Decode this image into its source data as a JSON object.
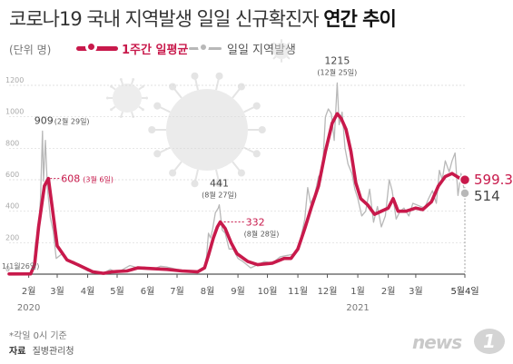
{
  "title": {
    "main": "코로나19 국내 지역발생 일일 신규확진자",
    "bold": "연간 추이"
  },
  "unit_label": "(단위 명)",
  "legend": {
    "weekly": "1주간 일평균",
    "daily": "일일 지역발생"
  },
  "footnote": "*각일 0시 기준",
  "source": {
    "label": "자료",
    "value": "질병관리청"
  },
  "logo": {
    "text": "news",
    "mark": "1"
  },
  "colors": {
    "weekly": "#c8194b",
    "daily": "#b8b8b8",
    "axis": "#999999",
    "grid": "#d8d8d8"
  },
  "chart_data": {
    "type": "line",
    "title": "",
    "xlabel": "",
    "ylabel": "",
    "ylim": [
      0,
      1200
    ],
    "yticks": [
      0,
      200,
      400,
      600,
      800,
      1000,
      1200
    ],
    "xlim": [
      "2020-01-26",
      "2021-05-04"
    ],
    "grid": true,
    "x_ticks": [
      {
        "date": "2020-02-15",
        "label": "2월",
        "sub": "2020"
      },
      {
        "date": "2020-03-15",
        "label": "3월"
      },
      {
        "date": "2020-04-15",
        "label": "4월"
      },
      {
        "date": "2020-05-15",
        "label": "5월"
      },
      {
        "date": "2020-06-15",
        "label": "6월"
      },
      {
        "date": "2020-07-15",
        "label": "7월"
      },
      {
        "date": "2020-08-15",
        "label": "8월"
      },
      {
        "date": "2020-09-15",
        "label": "9월"
      },
      {
        "date": "2020-10-15",
        "label": "10월"
      },
      {
        "date": "2020-11-15",
        "label": "11월"
      },
      {
        "date": "2020-12-15",
        "label": "12월"
      },
      {
        "date": "2021-01-15",
        "label": "1월",
        "sub": "2021"
      },
      {
        "date": "2021-02-15",
        "label": "2월"
      },
      {
        "date": "2021-03-15",
        "label": "3월"
      },
      {
        "date": "2021-05-04",
        "label": "5월4일"
      }
    ],
    "series": [
      {
        "name": "1주간 일평균",
        "points": [
          [
            "2020-01-26",
            1
          ],
          [
            "2020-02-17",
            2
          ],
          [
            "2020-02-21",
            60
          ],
          [
            "2020-02-25",
            300
          ],
          [
            "2020-03-02",
            560
          ],
          [
            "2020-03-06",
            608
          ],
          [
            "2020-03-10",
            420
          ],
          [
            "2020-03-15",
            180
          ],
          [
            "2020-03-25",
            90
          ],
          [
            "2020-04-05",
            60
          ],
          [
            "2020-04-20",
            15
          ],
          [
            "2020-05-01",
            5
          ],
          [
            "2020-05-10",
            15
          ],
          [
            "2020-05-25",
            20
          ],
          [
            "2020-06-05",
            40
          ],
          [
            "2020-06-20",
            35
          ],
          [
            "2020-07-05",
            30
          ],
          [
            "2020-07-20",
            20
          ],
          [
            "2020-08-05",
            15
          ],
          [
            "2020-08-12",
            40
          ],
          [
            "2020-08-16",
            120
          ],
          [
            "2020-08-21",
            230
          ],
          [
            "2020-08-25",
            300
          ],
          [
            "2020-08-28",
            332
          ],
          [
            "2020-09-02",
            290
          ],
          [
            "2020-09-08",
            200
          ],
          [
            "2020-09-14",
            130
          ],
          [
            "2020-09-25",
            80
          ],
          [
            "2020-10-05",
            60
          ],
          [
            "2020-10-20",
            70
          ],
          [
            "2020-11-01",
            100
          ],
          [
            "2020-11-08",
            100
          ],
          [
            "2020-11-15",
            160
          ],
          [
            "2020-11-22",
            290
          ],
          [
            "2020-11-29",
            430
          ],
          [
            "2020-12-06",
            560
          ],
          [
            "2020-12-13",
            780
          ],
          [
            "2020-12-20",
            960
          ],
          [
            "2020-12-25",
            1020
          ],
          [
            "2020-12-29",
            990
          ],
          [
            "2021-01-03",
            920
          ],
          [
            "2021-01-08",
            780
          ],
          [
            "2021-01-13",
            580
          ],
          [
            "2021-01-18",
            480
          ],
          [
            "2021-01-25",
            440
          ],
          [
            "2021-02-01",
            380
          ],
          [
            "2021-02-08",
            400
          ],
          [
            "2021-02-15",
            420
          ],
          [
            "2021-02-20",
            480
          ],
          [
            "2021-02-25",
            400
          ],
          [
            "2021-03-05",
            400
          ],
          [
            "2021-03-15",
            420
          ],
          [
            "2021-03-22",
            410
          ],
          [
            "2021-03-31",
            460
          ],
          [
            "2021-04-07",
            560
          ],
          [
            "2021-04-14",
            620
          ],
          [
            "2021-04-21",
            640
          ],
          [
            "2021-04-26",
            620
          ],
          [
            "2021-05-01",
            600
          ],
          [
            "2021-05-04",
            599.3
          ]
        ]
      },
      {
        "name": "일일 지역발생",
        "points": [
          [
            "2020-01-26",
            1
          ],
          [
            "2020-02-18",
            5
          ],
          [
            "2020-02-20",
            60
          ],
          [
            "2020-02-22",
            200
          ],
          [
            "2020-02-25",
            280
          ],
          [
            "2020-02-27",
            480
          ],
          [
            "2020-02-29",
            909
          ],
          [
            "2020-03-01",
            590
          ],
          [
            "2020-03-03",
            850
          ],
          [
            "2020-03-05",
            550
          ],
          [
            "2020-03-08",
            360
          ],
          [
            "2020-03-11",
            270
          ],
          [
            "2020-03-14",
            100
          ],
          [
            "2020-03-20",
            130
          ],
          [
            "2020-03-25",
            90
          ],
          [
            "2020-04-01",
            80
          ],
          [
            "2020-04-08",
            50
          ],
          [
            "2020-04-15",
            20
          ],
          [
            "2020-05-01",
            5
          ],
          [
            "2020-05-08",
            30
          ],
          [
            "2020-05-15",
            10
          ],
          [
            "2020-05-28",
            55
          ],
          [
            "2020-06-05",
            40
          ],
          [
            "2020-06-12",
            45
          ],
          [
            "2020-06-20",
            30
          ],
          [
            "2020-06-28",
            50
          ],
          [
            "2020-07-05",
            45
          ],
          [
            "2020-07-15",
            30
          ],
          [
            "2020-07-25",
            20
          ],
          [
            "2020-08-05",
            10
          ],
          [
            "2020-08-12",
            50
          ],
          [
            "2020-08-14",
            110
          ],
          [
            "2020-08-16",
            260
          ],
          [
            "2020-08-18",
            230
          ],
          [
            "2020-08-20",
            280
          ],
          [
            "2020-08-23",
            390
          ],
          [
            "2020-08-26",
            420
          ],
          [
            "2020-08-27",
            441
          ],
          [
            "2020-08-30",
            280
          ],
          [
            "2020-09-02",
            260
          ],
          [
            "2020-09-06",
            160
          ],
          [
            "2020-09-10",
            160
          ],
          [
            "2020-09-15",
            100
          ],
          [
            "2020-09-20",
            80
          ],
          [
            "2020-09-28",
            40
          ],
          [
            "2020-10-05",
            60
          ],
          [
            "2020-10-12",
            80
          ],
          [
            "2020-10-20",
            70
          ],
          [
            "2020-10-28",
            110
          ],
          [
            "2020-11-05",
            120
          ],
          [
            "2020-11-12",
            130
          ],
          [
            "2020-11-18",
            230
          ],
          [
            "2020-11-22",
            350
          ],
          [
            "2020-11-25",
            550
          ],
          [
            "2020-11-28",
            450
          ],
          [
            "2020-12-02",
            500
          ],
          [
            "2020-12-06",
            620
          ],
          [
            "2020-12-10",
            650
          ],
          [
            "2020-12-13",
            1000
          ],
          [
            "2020-12-16",
            1050
          ],
          [
            "2020-12-19",
            1020
          ],
          [
            "2020-12-22",
            850
          ],
          [
            "2020-12-25",
            1215
          ],
          [
            "2020-12-27",
            950
          ],
          [
            "2020-12-30",
            1030
          ],
          [
            "2021-01-02",
            800
          ],
          [
            "2021-01-05",
            700
          ],
          [
            "2021-01-09",
            640
          ],
          [
            "2021-01-12",
            540
          ],
          [
            "2021-01-15",
            480
          ],
          [
            "2021-01-19",
            370
          ],
          [
            "2021-01-23",
            400
          ],
          [
            "2021-01-27",
            540
          ],
          [
            "2021-01-31",
            330
          ],
          [
            "2021-02-04",
            430
          ],
          [
            "2021-02-08",
            300
          ],
          [
            "2021-02-12",
            370
          ],
          [
            "2021-02-16",
            600
          ],
          [
            "2021-02-19",
            530
          ],
          [
            "2021-02-23",
            350
          ],
          [
            "2021-02-27",
            400
          ],
          [
            "2021-03-03",
            420
          ],
          [
            "2021-03-08",
            370
          ],
          [
            "2021-03-12",
            450
          ],
          [
            "2021-03-16",
            440
          ],
          [
            "2021-03-20",
            430
          ],
          [
            "2021-03-24",
            420
          ],
          [
            "2021-03-28",
            480
          ],
          [
            "2021-04-01",
            530
          ],
          [
            "2021-04-05",
            450
          ],
          [
            "2021-04-08",
            660
          ],
          [
            "2021-04-11",
            600
          ],
          [
            "2021-04-14",
            720
          ],
          [
            "2021-04-18",
            650
          ],
          [
            "2021-04-21",
            720
          ],
          [
            "2021-04-24",
            770
          ],
          [
            "2021-04-27",
            500
          ],
          [
            "2021-04-30",
            640
          ],
          [
            "2021-05-02",
            580
          ],
          [
            "2021-05-04",
            514
          ]
        ]
      }
    ],
    "annotations": [
      {
        "series": "일일 지역발생",
        "date": "2020-02-29",
        "value": 909,
        "text": "909",
        "sub": "(2월 29일)"
      },
      {
        "series": "1주간 일평균",
        "date": "2020-03-06",
        "value": 608,
        "text": "608",
        "sub": "(3월 6일)"
      },
      {
        "series": "일일 지역발생",
        "date": "2020-08-27",
        "value": 441,
        "text": "441",
        "sub": "(8월 27일)"
      },
      {
        "series": "1주간 일평균",
        "date": "2020-08-28",
        "value": 332,
        "text": "332",
        "sub": "(8월 28일)"
      },
      {
        "series": "일일 지역발생",
        "date": "2020-12-25",
        "value": 1215,
        "text": "1215",
        "sub": "(12월 25일)"
      },
      {
        "series": "일일 지역발생",
        "date": "2020-01-26",
        "value": 1,
        "text": "1(1월26일)"
      }
    ],
    "latest": {
      "weekly": 599.3,
      "daily": 514
    }
  }
}
